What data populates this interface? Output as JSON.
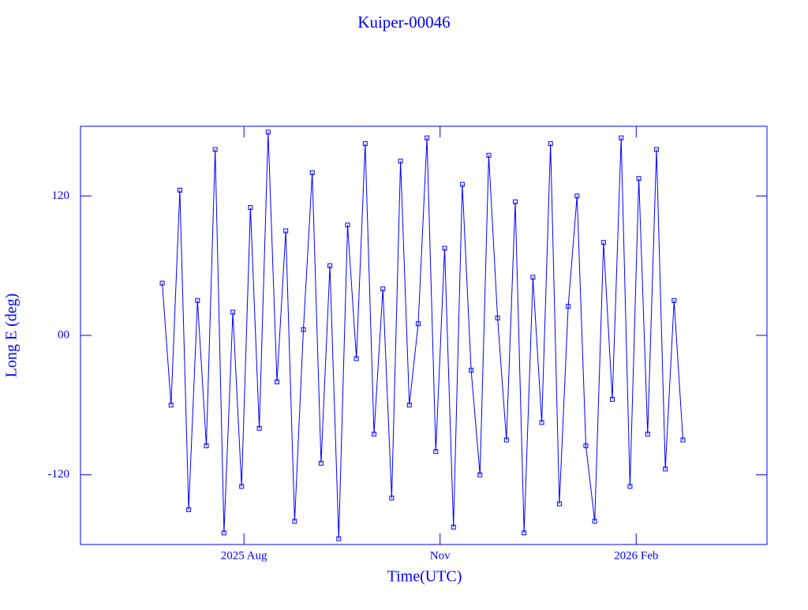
{
  "chart_data": {
    "type": "line",
    "title": "Kuiper-00046",
    "xlabel": "Time(UTC)",
    "ylabel": "Long E (deg)",
    "color": "#0000ff",
    "markers": true,
    "x": [
      6.75,
      6.885,
      7.02,
      7.155,
      7.29,
      7.425,
      7.56,
      7.695,
      7.83,
      7.965,
      8.1,
      8.235,
      8.37,
      8.505,
      8.64,
      8.775,
      8.91,
      9.045,
      9.18,
      9.315,
      9.45,
      9.585,
      9.72,
      9.855,
      9.99,
      10.125,
      10.26,
      10.395,
      10.53,
      10.665,
      10.8,
      10.935,
      11.07,
      11.205,
      11.34,
      11.475,
      11.61,
      11.745,
      11.88,
      12.015,
      12.15,
      12.285,
      12.42,
      12.555,
      12.69,
      12.825,
      12.96,
      13.095,
      13.23,
      13.365,
      13.5,
      13.635,
      13.77,
      13.905,
      14.04,
      14.175,
      14.31,
      14.445,
      14.58,
      14.715
    ],
    "values": [
      45,
      -60,
      125,
      -150,
      30,
      -95,
      160,
      -170,
      20,
      -130,
      110,
      -80,
      175,
      -40,
      90,
      -160,
      5,
      140,
      -110,
      60,
      -175,
      95,
      -20,
      165,
      -85,
      40,
      -140,
      150,
      -60,
      10,
      170,
      -100,
      75,
      -165,
      130,
      -30,
      -120,
      155,
      15,
      -90,
      115,
      -170,
      50,
      -75,
      165,
      -145,
      25,
      120,
      -95,
      -160,
      80,
      -55,
      170,
      -130,
      135,
      -85,
      160,
      -115,
      30,
      -90
    ],
    "xlim": [
      5.5,
      16
    ],
    "xticks": [
      {
        "value": 8,
        "label": "2025 Aug"
      },
      {
        "value": 11,
        "label": "Nov"
      },
      {
        "value": 14,
        "label": "2026 Feb"
      }
    ],
    "ylim": [
      -180,
      180
    ],
    "yticks": [
      {
        "value": -120,
        "label": "-120"
      },
      {
        "value": 0,
        "label": "00"
      },
      {
        "value": 120,
        "label": "120"
      }
    ]
  }
}
